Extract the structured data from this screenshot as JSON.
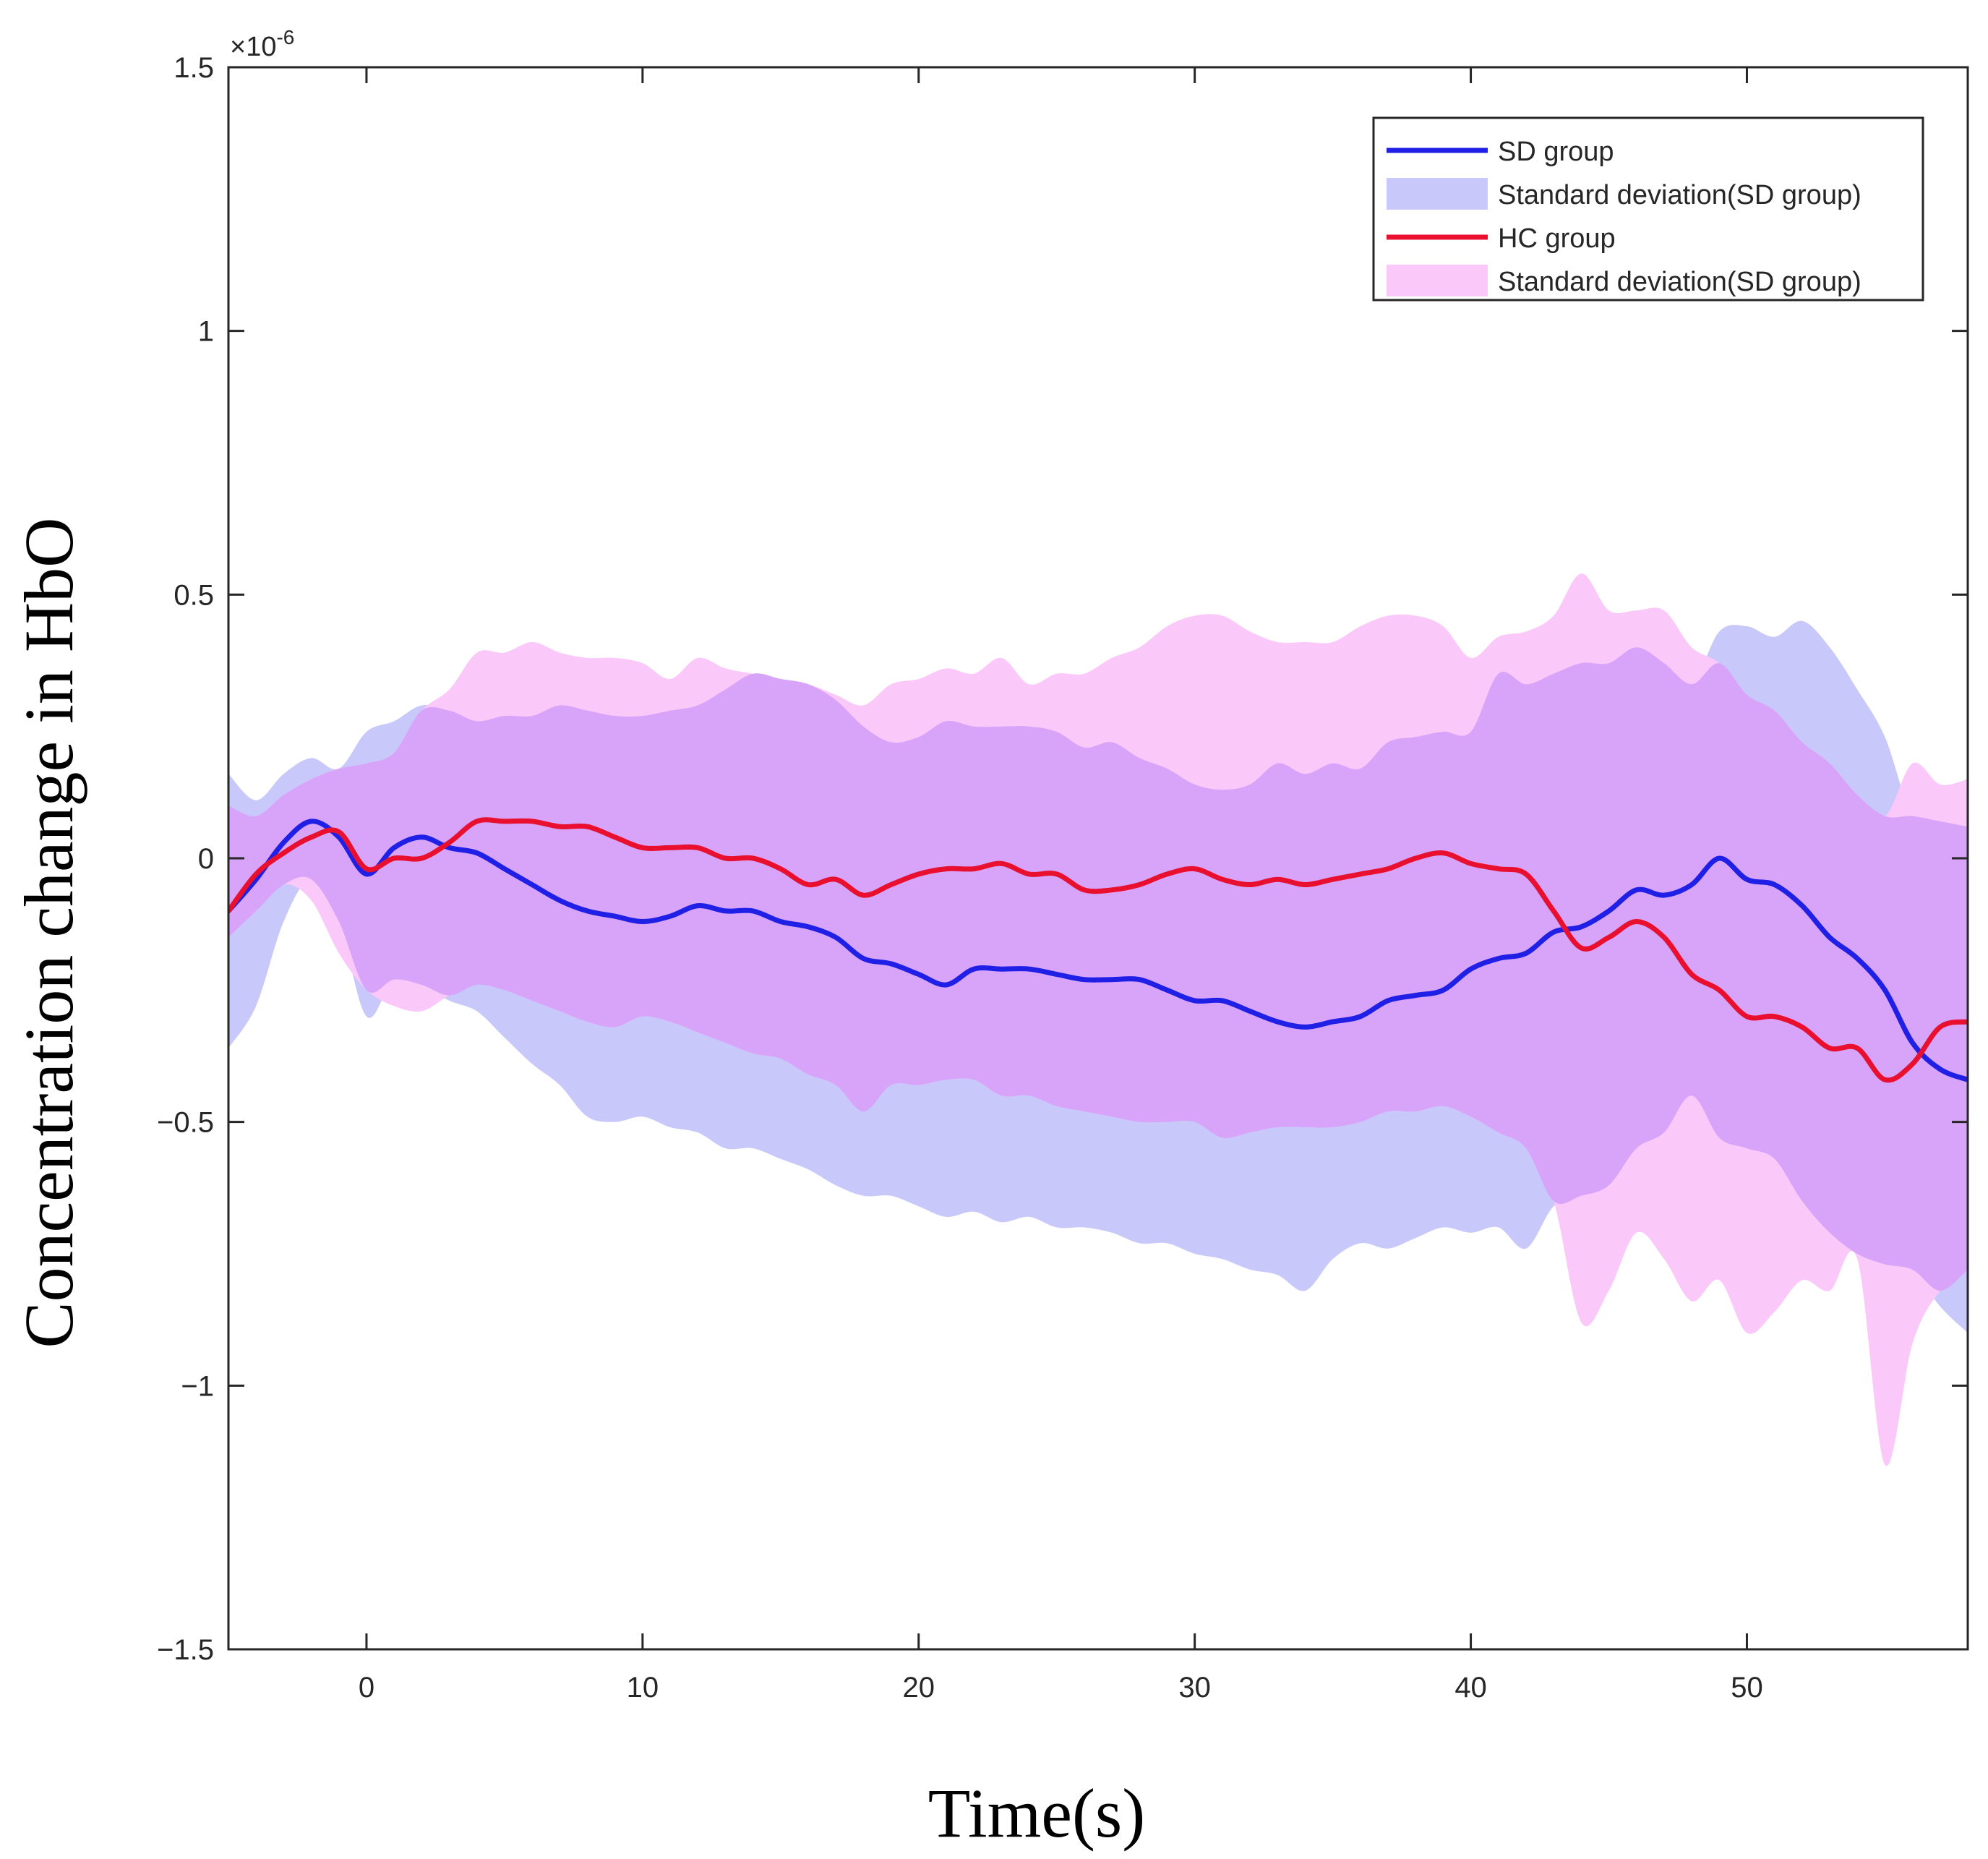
{
  "chart_data": {
    "type": "line",
    "title": "",
    "xlabel": "Time(s)",
    "ylabel": "Concentration change in HbO",
    "y_exponent_label": "×10",
    "y_exponent_power": "-6",
    "xlim": [
      -5,
      58
    ],
    "ylim": [
      -1.5,
      1.5
    ],
    "x_ticks": [
      0,
      10,
      20,
      30,
      40,
      50
    ],
    "x_tick_labels": [
      "0",
      "10",
      "20",
      "30",
      "40",
      "50"
    ],
    "y_ticks": [
      -1.5,
      -1,
      -0.5,
      0,
      0.5,
      1,
      1.5
    ],
    "y_tick_labels": [
      "−1.5",
      "−1",
      "−0.5",
      "0",
      "0.5",
      "1",
      "1.5"
    ],
    "grid": false,
    "legend_position": "top-right",
    "colors": {
      "sd_line": "#1f1fe6",
      "sd_band": "#c8c8fa",
      "hc_line": "#e8102e",
      "hc_band": "#fbc8fa",
      "overlap_band": "#d7a4fa"
    },
    "series": [
      {
        "name": "SD group",
        "kind": "line",
        "x": [
          -5,
          -4,
          -3,
          -2,
          -1,
          0,
          1,
          2,
          3,
          4,
          5,
          6,
          7,
          8,
          9,
          10,
          11,
          12,
          13,
          14,
          15,
          16,
          17,
          18,
          19,
          20,
          21,
          22,
          23,
          24,
          25,
          26,
          27,
          28,
          29,
          30,
          31,
          32,
          33,
          34,
          35,
          36,
          37,
          38,
          39,
          40,
          41,
          42,
          43,
          44,
          45,
          46,
          47,
          48,
          49,
          50,
          51,
          52,
          53,
          54,
          55,
          56,
          57,
          58
        ],
        "values": [
          -0.1,
          -0.04,
          0.03,
          0.07,
          0.04,
          -0.03,
          0.02,
          0.04,
          0.02,
          0.01,
          -0.02,
          -0.05,
          -0.08,
          -0.1,
          -0.11,
          -0.12,
          -0.11,
          -0.09,
          -0.1,
          -0.1,
          -0.12,
          -0.13,
          -0.15,
          -0.19,
          -0.2,
          -0.22,
          -0.24,
          -0.21,
          -0.21,
          -0.21,
          -0.22,
          -0.23,
          -0.23,
          -0.23,
          -0.25,
          -0.27,
          -0.27,
          -0.29,
          -0.31,
          -0.32,
          -0.31,
          -0.3,
          -0.27,
          -0.26,
          -0.25,
          -0.21,
          -0.19,
          -0.18,
          -0.14,
          -0.13,
          -0.1,
          -0.06,
          -0.07,
          -0.05,
          0.0,
          -0.04,
          -0.05,
          -0.09,
          -0.15,
          -0.19,
          -0.25,
          -0.35,
          -0.4,
          -0.42
        ]
      },
      {
        "name": "Standard deviation(SD group)",
        "kind": "band",
        "x": [
          -5,
          -4,
          -3,
          -2,
          -1,
          0,
          1,
          2,
          3,
          4,
          5,
          6,
          7,
          8,
          9,
          10,
          11,
          12,
          13,
          14,
          15,
          16,
          17,
          18,
          19,
          20,
          21,
          22,
          23,
          24,
          25,
          26,
          27,
          28,
          29,
          30,
          31,
          32,
          33,
          34,
          35,
          36,
          37,
          38,
          39,
          40,
          41,
          42,
          43,
          44,
          45,
          46,
          47,
          48,
          49,
          50,
          51,
          52,
          53,
          54,
          55,
          56,
          57,
          58
        ],
        "upper": [
          0.16,
          0.11,
          0.16,
          0.19,
          0.17,
          0.24,
          0.26,
          0.29,
          0.28,
          0.26,
          0.27,
          0.27,
          0.29,
          0.28,
          0.27,
          0.27,
          0.28,
          0.29,
          0.32,
          0.35,
          0.34,
          0.33,
          0.3,
          0.25,
          0.22,
          0.23,
          0.26,
          0.25,
          0.25,
          0.25,
          0.24,
          0.21,
          0.22,
          0.19,
          0.17,
          0.14,
          0.13,
          0.14,
          0.18,
          0.16,
          0.18,
          0.17,
          0.22,
          0.23,
          0.24,
          0.24,
          0.35,
          0.33,
          0.35,
          0.37,
          0.37,
          0.4,
          0.37,
          0.33,
          0.43,
          0.44,
          0.42,
          0.45,
          0.4,
          0.32,
          0.23,
          0.08,
          0.07,
          0.06
        ],
        "lower": [
          -0.36,
          -0.28,
          -0.12,
          -0.04,
          -0.12,
          -0.3,
          -0.23,
          -0.24,
          -0.27,
          -0.29,
          -0.34,
          -0.39,
          -0.43,
          -0.49,
          -0.5,
          -0.49,
          -0.51,
          -0.52,
          -0.55,
          -0.55,
          -0.57,
          -0.59,
          -0.62,
          -0.64,
          -0.64,
          -0.66,
          -0.68,
          -0.67,
          -0.69,
          -0.68,
          -0.7,
          -0.7,
          -0.71,
          -0.73,
          -0.73,
          -0.75,
          -0.76,
          -0.78,
          -0.79,
          -0.82,
          -0.76,
          -0.73,
          -0.74,
          -0.72,
          -0.7,
          -0.71,
          -0.7,
          -0.74,
          -0.66,
          -0.64,
          -0.62,
          -0.55,
          -0.52,
          -0.45,
          -0.53,
          -0.55,
          -0.57,
          -0.65,
          -0.71,
          -0.75,
          -0.77,
          -0.78,
          -0.85,
          -0.9
        ]
      },
      {
        "name": "HC group",
        "kind": "line",
        "x": [
          -5,
          -4,
          -3,
          -2,
          -1,
          0,
          1,
          2,
          3,
          4,
          5,
          6,
          7,
          8,
          9,
          10,
          11,
          12,
          13,
          14,
          15,
          16,
          17,
          18,
          19,
          20,
          21,
          22,
          23,
          24,
          25,
          26,
          27,
          28,
          29,
          30,
          31,
          32,
          33,
          34,
          35,
          36,
          37,
          38,
          39,
          40,
          41,
          42,
          43,
          44,
          45,
          46,
          47,
          48,
          49,
          50,
          51,
          52,
          53,
          54,
          55,
          56,
          57,
          58
        ],
        "values": [
          -0.1,
          -0.03,
          0.01,
          0.04,
          0.05,
          -0.02,
          0.0,
          0.0,
          0.03,
          0.07,
          0.07,
          0.07,
          0.06,
          0.06,
          0.04,
          0.02,
          0.02,
          0.02,
          0.0,
          0.0,
          -0.02,
          -0.05,
          -0.04,
          -0.07,
          -0.05,
          -0.03,
          -0.02,
          -0.02,
          -0.01,
          -0.03,
          -0.03,
          -0.06,
          -0.06,
          -0.05,
          -0.03,
          -0.02,
          -0.04,
          -0.05,
          -0.04,
          -0.05,
          -0.04,
          -0.03,
          -0.02,
          0.0,
          0.01,
          -0.01,
          -0.02,
          -0.03,
          -0.1,
          -0.17,
          -0.15,
          -0.12,
          -0.15,
          -0.22,
          -0.25,
          -0.3,
          -0.3,
          -0.32,
          -0.36,
          -0.36,
          -0.42,
          -0.39,
          -0.32,
          -0.31
        ]
      },
      {
        "name": "Standard deviation(SD group)",
        "kind": "band",
        "x": [
          -5,
          -4,
          -3,
          -2,
          -1,
          0,
          1,
          2,
          3,
          4,
          5,
          6,
          7,
          8,
          9,
          10,
          11,
          12,
          13,
          14,
          15,
          16,
          17,
          18,
          19,
          20,
          21,
          22,
          23,
          24,
          25,
          26,
          27,
          28,
          29,
          30,
          31,
          32,
          33,
          34,
          35,
          36,
          37,
          38,
          39,
          40,
          41,
          42,
          43,
          44,
          45,
          46,
          47,
          48,
          49,
          50,
          51,
          52,
          53,
          54,
          55,
          56,
          57,
          58
        ],
        "upper": [
          0.1,
          0.08,
          0.12,
          0.15,
          0.17,
          0.18,
          0.2,
          0.28,
          0.32,
          0.39,
          0.39,
          0.41,
          0.39,
          0.38,
          0.38,
          0.37,
          0.34,
          0.38,
          0.36,
          0.35,
          0.34,
          0.33,
          0.31,
          0.29,
          0.33,
          0.34,
          0.36,
          0.35,
          0.38,
          0.33,
          0.35,
          0.35,
          0.38,
          0.4,
          0.44,
          0.46,
          0.46,
          0.43,
          0.41,
          0.41,
          0.41,
          0.44,
          0.46,
          0.46,
          0.44,
          0.38,
          0.42,
          0.43,
          0.46,
          0.54,
          0.47,
          0.47,
          0.47,
          0.4,
          0.37,
          0.31,
          0.28,
          0.22,
          0.18,
          0.12,
          0.08,
          0.18,
          0.14,
          0.15
        ],
        "lower": [
          -0.15,
          -0.1,
          -0.05,
          -0.08,
          -0.18,
          -0.25,
          -0.28,
          -0.29,
          -0.26,
          -0.24,
          -0.25,
          -0.27,
          -0.29,
          -0.31,
          -0.32,
          -0.3,
          -0.31,
          -0.33,
          -0.35,
          -0.37,
          -0.38,
          -0.41,
          -0.43,
          -0.48,
          -0.43,
          -0.43,
          -0.42,
          -0.42,
          -0.45,
          -0.45,
          -0.47,
          -0.48,
          -0.49,
          -0.5,
          -0.5,
          -0.5,
          -0.53,
          -0.52,
          -0.51,
          -0.51,
          -0.51,
          -0.5,
          -0.48,
          -0.48,
          -0.47,
          -0.49,
          -0.52,
          -0.55,
          -0.65,
          -0.88,
          -0.82,
          -0.71,
          -0.76,
          -0.84,
          -0.8,
          -0.9,
          -0.86,
          -0.8,
          -0.82,
          -0.76,
          -1.15,
          -0.92,
          -0.82,
          -0.78
        ]
      }
    ],
    "legend": [
      {
        "label": "SD group",
        "kind": "line",
        "color_key": "sd_line"
      },
      {
        "label": "Standard deviation(SD group)",
        "kind": "patch",
        "color_key": "sd_band"
      },
      {
        "label": "HC group",
        "kind": "line",
        "color_key": "hc_line"
      },
      {
        "label": "Standard deviation(SD group)",
        "kind": "patch",
        "color_key": "hc_band"
      }
    ]
  }
}
